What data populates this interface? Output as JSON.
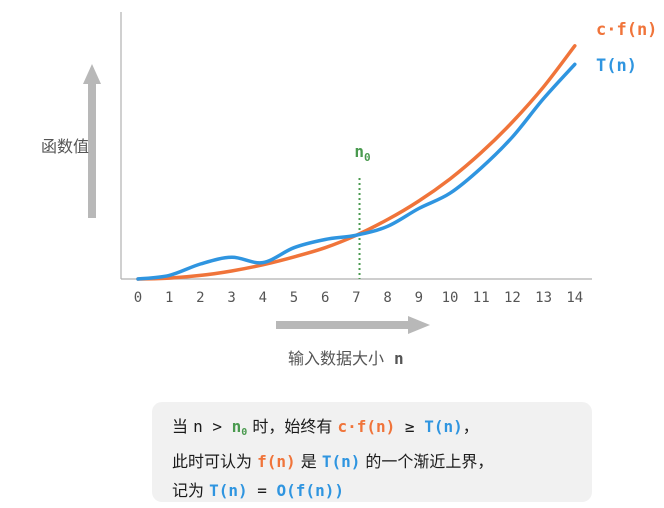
{
  "colors": {
    "cf": "#f0743a",
    "t": "#2f95e0",
    "n0": "#4a9a4f",
    "axis": "#b0b0b0",
    "arrow": "#b8b8b8",
    "text": "#555555",
    "note_bg": "#f1f1f1"
  },
  "labels": {
    "y_axis": "函数值",
    "x_axis": "输入数据大小",
    "x_var": "n",
    "n0_base": "n",
    "n0_sub": "0"
  },
  "note": {
    "l1_a": "当 ",
    "l1_n": "n",
    "l1_gt": " > ",
    "l1_n0": "n",
    "l1_n0_sub": "0",
    "l1_b": " 时，始终有 ",
    "l1_cf": "c·f(n)",
    "l1_ge": " ≥ ",
    "l1_t": "T(n)",
    "l1_c": "，",
    "l2_a": "此时可认为 ",
    "l2_f": "f(n)",
    "l2_b": " 是 ",
    "l2_t": "T(n)",
    "l2_c": " 的一个渐近上界，",
    "l3_a": "记为 ",
    "l3_t": "T(n)",
    "l3_eq": " = ",
    "l3_o": "O(f(n))"
  },
  "chart_data": {
    "type": "line",
    "x": [
      0,
      1,
      2,
      3,
      4,
      5,
      6,
      7,
      8,
      9,
      10,
      11,
      12,
      13,
      14
    ],
    "tick_labels": [
      "0",
      "1",
      "2",
      "3",
      "4",
      "5",
      "6",
      "7",
      "8",
      "9",
      "10",
      "11",
      "12",
      "13",
      "14"
    ],
    "series": [
      {
        "name": "c·f(n)",
        "values": [
          0,
          0.25,
          1,
          2.25,
          4,
          6.2,
          8.8,
          12.3,
          16.7,
          21.9,
          28.1,
          35.5,
          44.1,
          54.0,
          65.5
        ]
      },
      {
        "name": "T(n)",
        "values": [
          0,
          1,
          4.2,
          6.1,
          4.6,
          8.8,
          11.1,
          12.3,
          14.8,
          19.8,
          24.1,
          31.2,
          39.9,
          50.7,
          60.3
        ]
      }
    ],
    "n0": 7.1,
    "ylim": [
      0,
      75
    ],
    "xlim": [
      0,
      14
    ]
  }
}
